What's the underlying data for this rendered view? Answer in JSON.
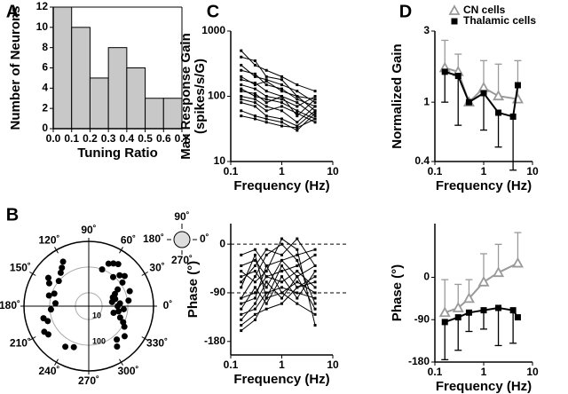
{
  "chart_data": [
    {
      "type": "histogram",
      "panel": "A",
      "xlabel": "Tuning Ratio",
      "ylabel": "Number of Neurons",
      "bins": [
        0,
        0.1,
        0.2,
        0.3,
        0.4,
        0.5,
        0.6,
        0.7
      ],
      "values": [
        12,
        10,
        5,
        8,
        6,
        3,
        3
      ],
      "color": "#c8c8c8",
      "xlim": [
        0,
        0.7
      ],
      "xticks": [
        {
          "value": 0,
          "label": "0.0"
        },
        0.1,
        0.2,
        0.3,
        0.4,
        0.5,
        0.6,
        0.7
      ],
      "ylim": [
        0,
        12
      ],
      "yticks": [
        0,
        2,
        4,
        6,
        8,
        10,
        12
      ]
    },
    {
      "type": "polar-scatter",
      "panel": "B",
      "color": "#000000",
      "rlog": true,
      "rlim": [
        3,
        1000
      ],
      "rticks": [
        10,
        100
      ],
      "thetaticks": [
        {
          "value": 0,
          "label": "0˚"
        },
        {
          "value": 30,
          "label": "30˚"
        },
        {
          "value": 60,
          "label": "60˚"
        },
        {
          "value": 90,
          "label": "90˚"
        },
        {
          "value": 120,
          "label": "120˚"
        },
        {
          "value": 150,
          "label": "150˚"
        },
        {
          "value": 180,
          "label": "180˚"
        },
        {
          "value": 210,
          "label": "210˚"
        },
        {
          "value": 240,
          "label": "240˚"
        },
        {
          "value": 270,
          "label": "270˚"
        },
        {
          "value": 300,
          "label": "300˚"
        },
        {
          "value": 330,
          "label": "330˚"
        }
      ],
      "theta": [
        45,
        50,
        40,
        35,
        30,
        25,
        20,
        15,
        10,
        5,
        0,
        350,
        345,
        340,
        335,
        330,
        320,
        310,
        305,
        60,
        65,
        70,
        55,
        120,
        125,
        130,
        140,
        145,
        150,
        160,
        165,
        175,
        185,
        195,
        200,
        210,
        215,
        240,
        250,
        355,
        8,
        20
      ],
      "r": [
        150,
        90,
        200,
        120,
        60,
        40,
        30,
        35,
        25,
        50,
        40,
        45,
        30,
        60,
        90,
        120,
        200,
        150,
        250,
        250,
        200,
        100,
        300,
        300,
        200,
        150,
        100,
        250,
        180,
        80,
        120,
        60,
        90,
        200,
        150,
        300,
        250,
        200,
        150,
        70,
        110,
        150
      ],
      "inset_labels": [
        "90˚",
        "180˚",
        "0˚",
        "270˚"
      ]
    },
    {
      "type": "line",
      "panel": "C",
      "xlabel": "Frequency (Hz)",
      "ylabel": [
        "Max Response Gain",
        "(spikes/s/G)"
      ],
      "xlog": true,
      "ylog": true,
      "xlim": [
        0.1,
        10
      ],
      "xticks": [
        0.1,
        1,
        10
      ],
      "ylim": [
        10,
        1000
      ],
      "yticks": [
        10,
        100,
        1000
      ],
      "color": "#000000",
      "marker": "square",
      "x": [
        0.16,
        0.3,
        0.5,
        1,
        2,
        4.5
      ],
      "series": [
        {
          "values": [
            500,
            300,
            250,
            200,
            150,
            120
          ]
        },
        {
          "values": [
            400,
            350,
            200,
            180,
            100,
            90
          ]
        },
        {
          "values": [
            300,
            200,
            180,
            150,
            120,
            80
          ]
        },
        {
          "values": [
            250,
            220,
            150,
            130,
            90,
            70
          ]
        },
        {
          "values": [
            200,
            150,
            170,
            120,
            100,
            60
          ]
        },
        {
          "values": [
            180,
            160,
            120,
            100,
            80,
            50
          ]
        },
        {
          "values": [
            150,
            130,
            100,
            90,
            70,
            100
          ]
        },
        {
          "values": [
            130,
            100,
            90,
            80,
            60,
            45
          ]
        },
        {
          "values": [
            120,
            110,
            80,
            100,
            50,
            90
          ]
        },
        {
          "values": [
            100,
            90,
            70,
            60,
            40,
            70
          ]
        },
        {
          "values": [
            90,
            80,
            60,
            70,
            55,
            40
          ]
        },
        {
          "values": [
            80,
            70,
            50,
            45,
            35,
            60
          ]
        },
        {
          "values": [
            60,
            50,
            45,
            40,
            30,
            55
          ]
        },
        {
          "values": [
            50,
            45,
            40,
            35,
            33,
            45
          ]
        }
      ]
    },
    {
      "type": "line",
      "xlabel": "Frequency (Hz)",
      "ylabel": [
        "Phase (°)"
      ],
      "xlog": true,
      "xlim": [
        0.1,
        10
      ],
      "xticks": [
        0.1,
        1,
        10
      ],
      "ylim": [
        -205,
        38
      ],
      "yticks": [
        -180,
        -90,
        0
      ],
      "reference_lines": [
        0,
        -90
      ],
      "color": "#000000",
      "marker": "square",
      "x": [
        0.16,
        0.3,
        0.5,
        1,
        2,
        4.5
      ],
      "series": [
        {
          "values": [
            -20,
            -10,
            -40,
            -30,
            -20,
            -10
          ]
        },
        {
          "values": [
            -40,
            -30,
            -60,
            -50,
            -40,
            -20
          ]
        },
        {
          "values": [
            -60,
            -50,
            -80,
            -30,
            -60,
            -40
          ]
        },
        {
          "values": [
            -80,
            -20,
            -100,
            -40,
            -80,
            -60
          ]
        },
        {
          "values": [
            -100,
            -90,
            -60,
            -70,
            -50,
            -80
          ]
        },
        {
          "values": [
            -110,
            -100,
            -40,
            -90,
            -70,
            -90
          ]
        },
        {
          "values": [
            -120,
            -80,
            -110,
            -60,
            -100,
            -50
          ]
        },
        {
          "values": [
            -130,
            -120,
            -90,
            -80,
            -90,
            -100
          ]
        },
        {
          "values": [
            -140,
            -110,
            -70,
            -100,
            -60,
            -120
          ]
        },
        {
          "values": [
            -150,
            -130,
            -120,
            -110,
            -80,
            -70
          ]
        },
        {
          "values": [
            -160,
            -140,
            -100,
            -90,
            -110,
            -130
          ]
        },
        {
          "values": [
            -100,
            -60,
            -20,
            0,
            -30,
            -110
          ]
        },
        {
          "values": [
            -70,
            -40,
            -10,
            -20,
            10,
            -40
          ]
        },
        {
          "values": [
            -50,
            -70,
            -50,
            10,
            -10,
            -150
          ]
        }
      ]
    },
    {
      "type": "line",
      "panel": "D",
      "xlabel": "Frequency (Hz)",
      "ylabel": [
        "Normalized Gain"
      ],
      "legend": "upper left",
      "xlog": true,
      "ylog": true,
      "xlim": [
        0.1,
        10
      ],
      "xticks": [
        0.1,
        1,
        10
      ],
      "ylim": [
        0.4,
        3
      ],
      "yticks": [
        0.4,
        1,
        3
      ],
      "series": [
        {
          "name": "CN cells",
          "color": "#9a9a9a",
          "marker": "triangle",
          "error_side": "upper",
          "x": [
            0.16,
            0.3,
            0.5,
            1,
            2,
            5
          ],
          "values": [
            1.7,
            1.6,
            1.0,
            1.25,
            1.1,
            1.05
          ],
          "errors": [
            0.9,
            0.5,
            0,
            0.65,
            0.7,
            0.85
          ]
        },
        {
          "name": "Thalamic cells",
          "color": "#000000",
          "marker": "square",
          "error_side": "lower",
          "x": [
            0.16,
            0.3,
            0.5,
            1,
            2,
            4,
            5
          ],
          "values": [
            1.6,
            1.5,
            1.0,
            1.15,
            0.85,
            0.8,
            1.3
          ],
          "errors": [
            0.6,
            0.8,
            0,
            0.5,
            0.35,
            0.45,
            0
          ]
        }
      ]
    },
    {
      "type": "line",
      "xlabel": "Frequency (Hz)",
      "ylabel": [
        "Phase (°)"
      ],
      "xlog": true,
      "xlim": [
        0.1,
        10
      ],
      "xticks": [
        0.1,
        1,
        10
      ],
      "ylim": [
        -180,
        114
      ],
      "yticks": [
        -180,
        -90,
        0
      ],
      "series": [
        {
          "color": "#9a9a9a",
          "marker": "triangle",
          "error_side": "upper",
          "x": [
            0.16,
            0.3,
            0.5,
            1,
            2,
            5
          ],
          "values": [
            -75,
            -65,
            -45,
            -10,
            10,
            30
          ],
          "errors": [
            70,
            50,
            40,
            60,
            60,
            65
          ]
        },
        {
          "color": "#000000",
          "marker": "square",
          "error_side": "lower",
          "x": [
            0.16,
            0.3,
            0.5,
            1,
            2,
            4,
            5
          ],
          "values": [
            -95,
            -85,
            -75,
            -70,
            -65,
            -70,
            -85
          ],
          "errors": [
            80,
            70,
            40,
            40,
            80,
            70,
            0
          ]
        }
      ]
    }
  ]
}
